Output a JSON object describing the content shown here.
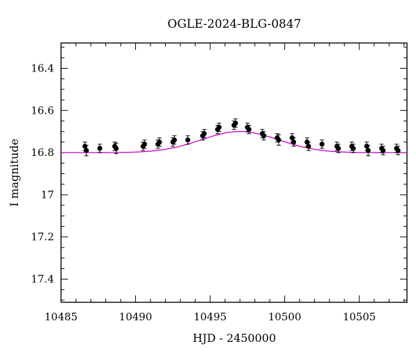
{
  "chart_data": {
    "type": "scatter",
    "title": "OGLE-2024-BLG-0847",
    "xlabel": "HJD - 2450000",
    "ylabel": "I magnitude",
    "xlim": [
      10485,
      10508.2
    ],
    "ylim": [
      17.51,
      16.28
    ],
    "y_inverted": true,
    "grid": false,
    "x_ticks": [
      10485,
      10490,
      10495,
      10500,
      10505
    ],
    "y_ticks": [
      16.4,
      16.6,
      16.8,
      17,
      17.2,
      17.4
    ],
    "x_minor_step": 1,
    "y_minor_step": 0.05,
    "colors": {
      "points": "#000000",
      "model": "#cc00cc"
    },
    "model": {
      "name": "",
      "baseline": 16.8,
      "peak_mag": 16.7,
      "t0": 10497.0,
      "width": 2.6
    },
    "points": [
      {
        "x": 10486.6,
        "y": 16.77,
        "err": 0.02
      },
      {
        "x": 10486.7,
        "y": 16.79,
        "err": 0.025
      },
      {
        "x": 10487.6,
        "y": 16.78,
        "err": 0.02
      },
      {
        "x": 10488.6,
        "y": 16.77,
        "err": 0.02
      },
      {
        "x": 10488.7,
        "y": 16.78,
        "err": 0.025
      },
      {
        "x": 10490.5,
        "y": 16.77,
        "err": 0.02
      },
      {
        "x": 10490.6,
        "y": 16.76,
        "err": 0.02
      },
      {
        "x": 10491.5,
        "y": 16.76,
        "err": 0.02
      },
      {
        "x": 10491.6,
        "y": 16.75,
        "err": 0.02
      },
      {
        "x": 10492.5,
        "y": 16.75,
        "err": 0.02
      },
      {
        "x": 10492.6,
        "y": 16.74,
        "err": 0.02
      },
      {
        "x": 10493.5,
        "y": 16.74,
        "err": 0.02
      },
      {
        "x": 10494.5,
        "y": 16.72,
        "err": 0.02
      },
      {
        "x": 10494.6,
        "y": 16.71,
        "err": 0.02
      },
      {
        "x": 10495.5,
        "y": 16.69,
        "err": 0.02
      },
      {
        "x": 10495.6,
        "y": 16.68,
        "err": 0.02
      },
      {
        "x": 10496.6,
        "y": 16.67,
        "err": 0.02
      },
      {
        "x": 10496.7,
        "y": 16.66,
        "err": 0.02
      },
      {
        "x": 10497.5,
        "y": 16.68,
        "err": 0.02
      },
      {
        "x": 10497.6,
        "y": 16.69,
        "err": 0.02
      },
      {
        "x": 10498.5,
        "y": 16.71,
        "err": 0.02
      },
      {
        "x": 10498.6,
        "y": 16.72,
        "err": 0.02
      },
      {
        "x": 10499.5,
        "y": 16.73,
        "err": 0.02
      },
      {
        "x": 10499.6,
        "y": 16.74,
        "err": 0.025
      },
      {
        "x": 10500.5,
        "y": 16.73,
        "err": 0.02
      },
      {
        "x": 10500.6,
        "y": 16.75,
        "err": 0.02
      },
      {
        "x": 10501.5,
        "y": 16.75,
        "err": 0.02
      },
      {
        "x": 10501.6,
        "y": 16.77,
        "err": 0.02
      },
      {
        "x": 10502.5,
        "y": 16.76,
        "err": 0.02
      },
      {
        "x": 10503.5,
        "y": 16.77,
        "err": 0.02
      },
      {
        "x": 10503.6,
        "y": 16.78,
        "err": 0.02
      },
      {
        "x": 10504.5,
        "y": 16.77,
        "err": 0.02
      },
      {
        "x": 10504.6,
        "y": 16.78,
        "err": 0.02
      },
      {
        "x": 10505.5,
        "y": 16.77,
        "err": 0.02
      },
      {
        "x": 10505.6,
        "y": 16.79,
        "err": 0.025
      },
      {
        "x": 10506.5,
        "y": 16.78,
        "err": 0.02
      },
      {
        "x": 10506.6,
        "y": 16.79,
        "err": 0.02
      },
      {
        "x": 10507.5,
        "y": 16.78,
        "err": 0.02
      },
      {
        "x": 10507.6,
        "y": 16.79,
        "err": 0.02
      }
    ]
  }
}
